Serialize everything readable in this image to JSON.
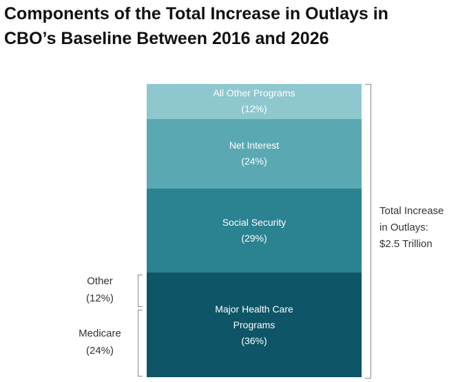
{
  "chart_data": {
    "type": "stacked-bar",
    "title": "Components of the Total Increase in Outlays in CBO’s Baseline Between 2016 and 2026",
    "categories": [
      "Major Health Care Programs",
      "Social Security",
      "Net Interest",
      "All Other Programs"
    ],
    "values": [
      36,
      29,
      24,
      12
    ],
    "value_labels": [
      "(36%)",
      "(29%)",
      "(24%)",
      "(12%)"
    ],
    "colors": [
      "#0d5567",
      "#2b8290",
      "#5aa9b2",
      "#8fc7cf"
    ],
    "breakdown": {
      "categories": [
        "Medicare",
        "Other"
      ],
      "values": [
        24,
        12
      ],
      "value_labels": [
        "(24%)",
        "(12%)"
      ]
    },
    "annotation": [
      "Total Increase",
      "in Outlays:",
      "$2.5 Trillion"
    ]
  }
}
